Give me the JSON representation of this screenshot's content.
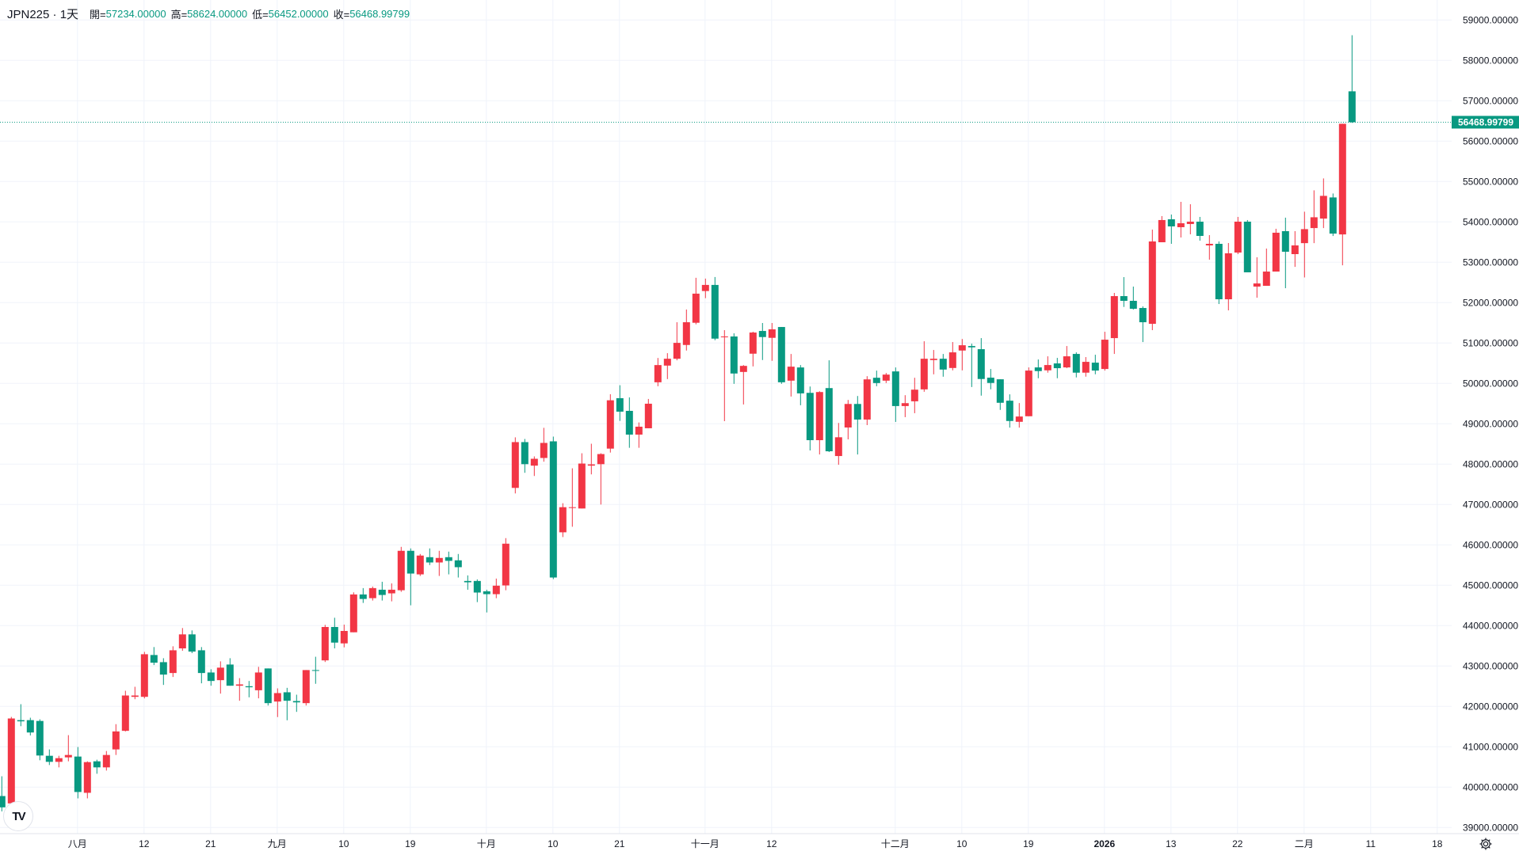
{
  "header": {
    "symbol_title": "JPN225 · 1天",
    "open_label": "開=",
    "open_value": "57234.00000",
    "high_label": "高=",
    "high_value": "58624.00000",
    "low_label": "低=",
    "low_value": "56452.00000",
    "close_label": "收=",
    "close_value": "56468.99799"
  },
  "logo_text": "TV",
  "icons": {
    "settings": "gear-icon",
    "logo": "tradingview-logo-icon"
  },
  "colors": {
    "up": "#f23645",
    "down": "#089981",
    "grid": "#f0f3fa",
    "text": "#131722",
    "last_price": "#089981"
  },
  "chart_data": {
    "type": "candlestick",
    "title": "JPN225 · 1天",
    "ylim": [
      39000,
      59000
    ],
    "y_ticks": [
      "59000.00000",
      "58000.00000",
      "57000.00000",
      "56000.00000",
      "55000.00000",
      "54000.00000",
      "53000.00000",
      "52000.00000",
      "51000.00000",
      "50000.00000",
      "49000.00000",
      "48000.00000",
      "47000.00000",
      "46000.00000",
      "45000.00000",
      "44000.00000",
      "43000.00000",
      "42000.00000",
      "41000.00000",
      "40000.00000",
      "39000.00000"
    ],
    "x_ticks": [
      {
        "label": "八月",
        "index": 8
      },
      {
        "label": "12",
        "index": 15
      },
      {
        "label": "21",
        "index": 22
      },
      {
        "label": "九月",
        "index": 29
      },
      {
        "label": "10",
        "index": 36
      },
      {
        "label": "19",
        "index": 43
      },
      {
        "label": "十月",
        "index": 51
      },
      {
        "label": "10",
        "index": 58
      },
      {
        "label": "21",
        "index": 65
      },
      {
        "label": "十一月",
        "index": 74
      },
      {
        "label": "12",
        "index": 81
      },
      {
        "label": "十二月",
        "index": 94
      },
      {
        "label": "10",
        "index": 101
      },
      {
        "label": "19",
        "index": 108
      },
      {
        "label": "2026",
        "index": 116
      },
      {
        "label": "13",
        "index": 123
      },
      {
        "label": "22",
        "index": 130
      },
      {
        "label": "二月",
        "index": 137
      },
      {
        "label": "11",
        "index": 144
      },
      {
        "label": "18",
        "index": 151
      }
    ],
    "last_price": 56468.99799,
    "last_price_label": "56468.99799",
    "ohlc": [
      [
        39780,
        40270,
        39400,
        39500
      ],
      [
        39598,
        41740,
        39570,
        41701
      ],
      [
        41660,
        42055,
        41510,
        41630
      ],
      [
        41660,
        41720,
        41280,
        41354
      ],
      [
        41640,
        41680,
        40666,
        40784
      ],
      [
        40777,
        40935,
        40548,
        40627
      ],
      [
        40627,
        40777,
        40490,
        40718
      ],
      [
        40738,
        41288,
        40640,
        40797
      ],
      [
        40758,
        40994,
        39722,
        39880
      ],
      [
        39860,
        40640,
        39722,
        40620
      ],
      [
        40640,
        40680,
        40332,
        40490
      ],
      [
        40490,
        40895,
        40411,
        40797
      ],
      [
        40935,
        41560,
        40797,
        41380
      ],
      [
        41395,
        42388,
        41380,
        42270
      ],
      [
        42237,
        42486,
        42178,
        42270
      ],
      [
        42237,
        43351,
        42198,
        43292
      ],
      [
        43273,
        43470,
        43024,
        43083
      ],
      [
        43096,
        43194,
        42532,
        42788
      ],
      [
        42827,
        43489,
        42729,
        43390
      ],
      [
        43437,
        43941,
        43378,
        43784
      ],
      [
        43784,
        43882,
        43319,
        43358
      ],
      [
        43390,
        43470,
        42572,
        42827
      ],
      [
        42840,
        42920,
        42512,
        42630
      ],
      [
        42650,
        43116,
        42317,
        42960
      ],
      [
        43037,
        43194,
        42512,
        42512
      ],
      [
        42512,
        42700,
        42140,
        42545
      ],
      [
        42500,
        42630,
        42225,
        42474
      ],
      [
        42400,
        42980,
        42200,
        42840
      ],
      [
        42940,
        42940,
        42022,
        42081
      ],
      [
        42120,
        42447,
        41736,
        42330
      ],
      [
        42350,
        42460,
        41657,
        42140
      ],
      [
        42133,
        42290,
        41865,
        42100
      ],
      [
        42081,
        42900,
        42022,
        42900
      ],
      [
        42900,
        43230,
        42560,
        42880
      ],
      [
        43140,
        44020,
        43100,
        43967
      ],
      [
        43967,
        44196,
        43437,
        43580
      ],
      [
        43561,
        44026,
        43463,
        43869
      ],
      [
        43836,
        44825,
        43836,
        44773
      ],
      [
        44773,
        44930,
        44563,
        44661
      ],
      [
        44681,
        44969,
        44622,
        44930
      ],
      [
        44890,
        45087,
        44622,
        44760
      ],
      [
        44800,
        45048,
        44602,
        44890
      ],
      [
        44877,
        45952,
        44838,
        45854
      ],
      [
        45854,
        45913,
        44504,
        45290
      ],
      [
        45270,
        45775,
        45231,
        45736
      ],
      [
        45696,
        45913,
        45500,
        45565
      ],
      [
        45565,
        45854,
        45231,
        45677
      ],
      [
        45696,
        45834,
        45270,
        45605
      ],
      [
        45618,
        45775,
        45192,
        45448
      ],
      [
        45107,
        45245,
        44890,
        45074
      ],
      [
        45107,
        45146,
        44583,
        44820
      ],
      [
        44851,
        44890,
        44327,
        44780
      ],
      [
        44780,
        45166,
        44680,
        44990
      ],
      [
        44996,
        46168,
        44877,
        46030
      ],
      [
        47412,
        48664,
        47275,
        48546
      ],
      [
        48546,
        48624,
        47786,
        48000
      ],
      [
        47963,
        48192,
        47707,
        48133
      ],
      [
        48153,
        48900,
        48061,
        48526
      ],
      [
        48565,
        48683,
        45153,
        45192
      ],
      [
        46312,
        47033,
        46194,
        46934
      ],
      [
        46915,
        47897,
        46450,
        46934
      ],
      [
        46902,
        48270,
        46902,
        48015
      ],
      [
        47963,
        48506,
        47747,
        47995
      ],
      [
        48000,
        48270,
        47000,
        48250
      ],
      [
        48385,
        49732,
        48287,
        49582
      ],
      [
        49634,
        49955,
        49072,
        49300
      ],
      [
        49320,
        49654,
        48405,
        48732
      ],
      [
        48732,
        49033,
        48405,
        48928
      ],
      [
        48889,
        49615,
        48889,
        49497
      ],
      [
        50028,
        50630,
        49930,
        50454
      ],
      [
        50441,
        50749,
        50107,
        50611
      ],
      [
        50611,
        51515,
        50572,
        51004
      ],
      [
        50952,
        51830,
        50814,
        51515
      ],
      [
        51502,
        52616,
        51463,
        52223
      ],
      [
        52288,
        52596,
        52111,
        52439
      ],
      [
        52439,
        52635,
        51070,
        51109
      ],
      [
        51142,
        51319,
        49065,
        51162
      ],
      [
        51162,
        51240,
        49989,
        50245
      ],
      [
        50284,
        50454,
        49478,
        50434
      ],
      [
        50736,
        51280,
        50421,
        51260
      ],
      [
        51299,
        51496,
        50579,
        51148
      ],
      [
        51129,
        51496,
        50559,
        51339
      ],
      [
        51397,
        51397,
        49989,
        50028
      ],
      [
        50068,
        50729,
        49675,
        50415
      ],
      [
        50395,
        50454,
        49459,
        49753
      ],
      [
        49766,
        49923,
        48339,
        48594
      ],
      [
        48594,
        49806,
        48240,
        49786
      ],
      [
        49884,
        50572,
        48300,
        48319
      ],
      [
        48201,
        49020,
        47985,
        48666
      ],
      [
        48908,
        49590,
        48614,
        49491
      ],
      [
        49491,
        49688,
        48240,
        49105
      ],
      [
        49105,
        50179,
        48967,
        50100
      ],
      [
        50140,
        50317,
        49930,
        50009
      ],
      [
        50068,
        50258,
        50009,
        50218
      ],
      [
        50297,
        50395,
        49046,
        49439
      ],
      [
        49439,
        49708,
        49164,
        49511
      ],
      [
        49557,
        50140,
        49262,
        49845
      ],
      [
        49852,
        51044,
        49793,
        50611
      ],
      [
        50578,
        50828,
        50225,
        50611
      ],
      [
        50611,
        50729,
        50166,
        50343
      ],
      [
        50382,
        51024,
        50323,
        50769
      ],
      [
        50814,
        51100,
        50323,
        50945
      ],
      [
        50926,
        50985,
        49910,
        50893
      ],
      [
        50848,
        51122,
        49697,
        50109
      ],
      [
        50142,
        50357,
        49854,
        50011
      ],
      [
        50102,
        50102,
        49344,
        49520
      ],
      [
        49572,
        49729,
        48905,
        49069
      ],
      [
        49049,
        49513,
        48905,
        49180
      ],
      [
        49187,
        50396,
        49187,
        50318
      ],
      [
        50396,
        50593,
        50128,
        50305
      ],
      [
        50324,
        50671,
        50266,
        50455
      ],
      [
        50495,
        50632,
        50128,
        50377
      ],
      [
        50396,
        50926,
        50377,
        50671
      ],
      [
        50730,
        50769,
        50148,
        50266
      ],
      [
        50266,
        50652,
        50167,
        50534
      ],
      [
        50514,
        50710,
        50226,
        50318
      ],
      [
        50357,
        51279,
        50318,
        51083
      ],
      [
        51122,
        52241,
        50730,
        52162
      ],
      [
        52162,
        52633,
        51894,
        52045
      ],
      [
        52045,
        52398,
        51829,
        51848
      ],
      [
        51868,
        51907,
        51024,
        51515
      ],
      [
        51476,
        53810,
        51319,
        53516
      ],
      [
        53496,
        54144,
        53496,
        54046
      ],
      [
        54065,
        54183,
        53457,
        53889
      ],
      [
        53869,
        54497,
        53614,
        53967
      ],
      [
        53948,
        54438,
        53693,
        54006
      ],
      [
        54006,
        54124,
        53536,
        53653
      ],
      [
        53418,
        53673,
        53065,
        53457
      ],
      [
        53457,
        53516,
        51966,
        52084
      ],
      [
        52084,
        53477,
        51809,
        53222
      ],
      [
        53241,
        54124,
        53202,
        54006
      ],
      [
        54006,
        54046,
        52751,
        52751
      ],
      [
        52398,
        53124,
        52123,
        52476
      ],
      [
        52417,
        53340,
        52417,
        52770
      ],
      [
        52770,
        53830,
        52770,
        53732
      ],
      [
        53771,
        54105,
        52358,
        53261
      ],
      [
        53202,
        53771,
        52886,
        53418
      ],
      [
        53474,
        54253,
        52624,
        53821
      ],
      [
        53847,
        54782,
        53474,
        54115
      ],
      [
        54082,
        55077,
        53847,
        54645
      ],
      [
        54606,
        54704,
        53651,
        53710
      ],
      [
        53690,
        56430,
        52925,
        56430
      ],
      [
        57234,
        58624,
        56452,
        56469
      ]
    ]
  }
}
